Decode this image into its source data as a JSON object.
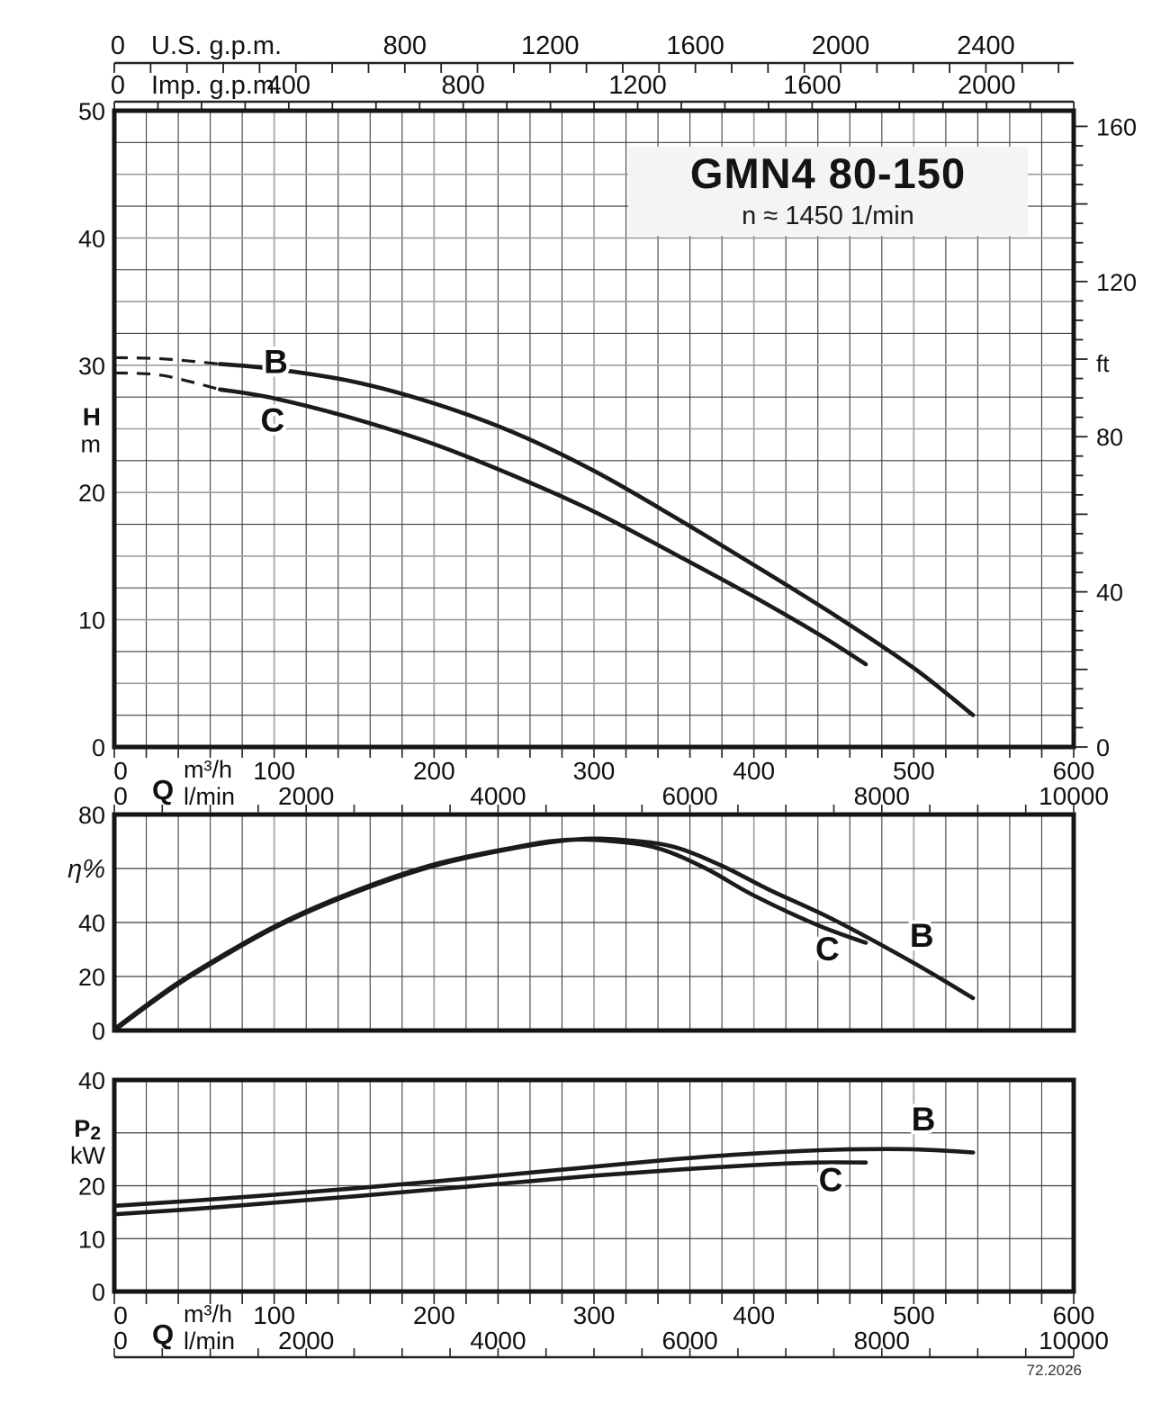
{
  "figure": {
    "title": "GMN4 80-150",
    "subtitle": "n ≈ 1450 1/min",
    "plate_number": "72.2026"
  },
  "colors": {
    "curve": "#1b1b1b",
    "frame": "#151515",
    "axis": "#222222",
    "grid_dark": "#3f3f3f",
    "grid_light": "#9d9d9d",
    "title_bg": "#f4f4f2",
    "text": "#111111"
  },
  "chart_data": {
    "type": "line",
    "x_axis": {
      "label": "Q",
      "unit_primary": "m³/h",
      "unit_secondary": "l/min",
      "xlim": [
        0,
        600
      ],
      "ticks_m3h": [
        0,
        100,
        200,
        300,
        400,
        500,
        600
      ],
      "ticks_lmin": [
        0,
        2000,
        4000,
        6000,
        8000,
        10000
      ],
      "minor_step_m3h": 20,
      "ruler_step_lmin": 500
    },
    "top_axes": [
      {
        "zero_label": "0",
        "label": "U.S. g.p.m.",
        "labeled_ticks": [
          800,
          1200,
          1600,
          2000,
          2400
        ],
        "tick_step": 100,
        "units_per_m3h": 4.4029
      },
      {
        "zero_label": "0",
        "label": "Imp. g.p.m.",
        "labeled_ticks": [
          400,
          800,
          1200,
          1600,
          2000
        ],
        "tick_step": 100,
        "units_per_m3h": 3.6662
      }
    ],
    "charts": [
      {
        "id": "head",
        "ylabel": "H",
        "y_unit": "m",
        "ylim": [
          0,
          50
        ],
        "y_ticks": [
          0,
          10,
          20,
          30,
          40,
          50
        ],
        "grid_step_y": 2.5,
        "ylabel_at": 26,
        "y2_axis": {
          "unit": "ft",
          "ticks": [
            0,
            40,
            80,
            120,
            160
          ],
          "minor_step": 5,
          "major_step": 20,
          "ft_per_m": 3.2808
        },
        "series": [
          {
            "name": "B",
            "dashed_until": 66,
            "label_at": [
              101,
              29.4
            ],
            "points": [
              [
                0,
                30.6
              ],
              [
                30,
                30.5
              ],
              [
                66,
                30.1
              ],
              [
                100,
                29.7
              ],
              [
                150,
                28.7
              ],
              [
                200,
                27.0
              ],
              [
                250,
                24.7
              ],
              [
                300,
                21.7
              ],
              [
                350,
                18.1
              ],
              [
                400,
                14.3
              ],
              [
                450,
                10.4
              ],
              [
                500,
                6.2
              ],
              [
                537,
                2.5
              ]
            ]
          },
          {
            "name": "C",
            "dashed_until": 66,
            "label_at": [
              99,
              24.8
            ],
            "points": [
              [
                0,
                29.4
              ],
              [
                30,
                29.2
              ],
              [
                66,
                28.1
              ],
              [
                100,
                27.4
              ],
              [
                150,
                25.8
              ],
              [
                200,
                23.8
              ],
              [
                250,
                21.3
              ],
              [
                300,
                18.5
              ],
              [
                350,
                15.2
              ],
              [
                400,
                11.8
              ],
              [
                440,
                8.9
              ],
              [
                470,
                6.5
              ]
            ]
          }
        ]
      },
      {
        "id": "efficiency",
        "ylabel": "η%",
        "ylim": [
          0,
          80
        ],
        "y_ticks": [
          0,
          20,
          40,
          80
        ],
        "grid_lines_y": [
          20,
          40,
          60
        ],
        "ylabel_at": 60,
        "series": [
          {
            "name": "B",
            "label_at": [
              505,
              31
            ],
            "points": [
              [
                0,
                0
              ],
              [
                25,
                11
              ],
              [
                50,
                21
              ],
              [
                100,
                38
              ],
              [
                150,
                51
              ],
              [
                200,
                61
              ],
              [
                250,
                67.5
              ],
              [
                290,
                70.8
              ],
              [
                320,
                70.5
              ],
              [
                350,
                68
              ],
              [
                380,
                61
              ],
              [
                410,
                52
              ],
              [
                450,
                41
              ],
              [
                500,
                25
              ],
              [
                537,
                12
              ]
            ]
          },
          {
            "name": "C",
            "label_at": [
              446,
              26
            ],
            "points": [
              [
                0,
                0.5
              ],
              [
                25,
                11.5
              ],
              [
                50,
                21.5
              ],
              [
                100,
                38.5
              ],
              [
                150,
                51.5
              ],
              [
                200,
                61.5
              ],
              [
                250,
                67.8
              ],
              [
                280,
                70.5
              ],
              [
                310,
                70.2
              ],
              [
                340,
                67.5
              ],
              [
                370,
                60
              ],
              [
                400,
                50
              ],
              [
                440,
                39
              ],
              [
                470,
                32.5
              ]
            ]
          }
        ]
      },
      {
        "id": "power",
        "ylabel": "P2",
        "y_unit": "kW",
        "ylim": [
          0,
          40
        ],
        "y_ticks": [
          0,
          10,
          20,
          40
        ],
        "grid_lines_y": [
          10,
          20,
          30
        ],
        "ylabel_at": 30,
        "series": [
          {
            "name": "B",
            "label_at": [
              506,
              30.5
            ],
            "points": [
              [
                0,
                16.2
              ],
              [
                50,
                17.2
              ],
              [
                100,
                18.3
              ],
              [
                150,
                19.5
              ],
              [
                200,
                20.8
              ],
              [
                250,
                22.2
              ],
              [
                300,
                23.6
              ],
              [
                350,
                25.0
              ],
              [
                400,
                26.1
              ],
              [
                450,
                26.8
              ],
              [
                500,
                26.9
              ],
              [
                537,
                26.3
              ]
            ]
          },
          {
            "name": "C",
            "label_at": [
              448,
              19
            ],
            "points": [
              [
                0,
                14.6
              ],
              [
                50,
                15.6
              ],
              [
                100,
                16.8
              ],
              [
                150,
                18.0
              ],
              [
                200,
                19.3
              ],
              [
                250,
                20.6
              ],
              [
                300,
                21.9
              ],
              [
                350,
                23.0
              ],
              [
                400,
                23.9
              ],
              [
                440,
                24.4
              ],
              [
                470,
                24.4
              ]
            ]
          }
        ]
      }
    ]
  }
}
